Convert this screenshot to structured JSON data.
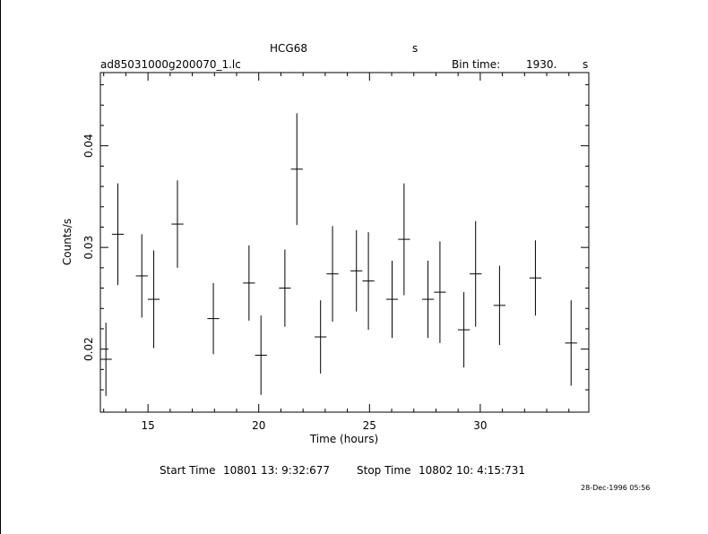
{
  "header": {
    "object": "HCG68",
    "object_unit": "s",
    "file": "ad85031000g200070_1.lc",
    "bin_label": "Bin time:",
    "bin_value": "1930.",
    "bin_unit": "s"
  },
  "footer": {
    "start_label": "Start Time",
    "start_value": "10801 13: 9:32:677",
    "stop_label": "Stop Time",
    "stop_value": "10802 10: 4:15:731",
    "timestamp": "28-Dec-1996 05:56"
  },
  "chart_data": {
    "type": "scatter",
    "title": "HCG68",
    "xlabel": "Time (hours)",
    "ylabel": "Counts/s",
    "xlim": [
      12.85,
      34.9
    ],
    "ylim": [
      0.0138,
      0.0472
    ],
    "x_ticks": [
      15,
      20,
      25,
      30
    ],
    "y_ticks": [
      0.02,
      0.03,
      0.04
    ],
    "x_tick_labels": [
      "15",
      "20",
      "25",
      "30"
    ],
    "y_tick_labels": [
      "0.02",
      "0.03",
      "0.04"
    ],
    "grid": false,
    "series": [
      {
        "points": [
          {
            "x": 13.1,
            "y": 0.019,
            "err": 0.0036
          },
          {
            "x": 13.64,
            "y": 0.0313,
            "err": 0.005
          },
          {
            "x": 14.72,
            "y": 0.0272,
            "err": 0.0041
          },
          {
            "x": 15.26,
            "y": 0.0249,
            "err": 0.0048
          },
          {
            "x": 16.33,
            "y": 0.0323,
            "err": 0.0043
          },
          {
            "x": 17.95,
            "y": 0.023,
            "err": 0.0035
          },
          {
            "x": 19.56,
            "y": 0.0265,
            "err": 0.0037
          },
          {
            "x": 20.1,
            "y": 0.0194,
            "err": 0.0039
          },
          {
            "x": 21.18,
            "y": 0.026,
            "err": 0.0038
          },
          {
            "x": 21.72,
            "y": 0.0377,
            "err": 0.0055
          },
          {
            "x": 22.79,
            "y": 0.0212,
            "err": 0.0036
          },
          {
            "x": 23.33,
            "y": 0.0274,
            "err": 0.0047
          },
          {
            "x": 24.41,
            "y": 0.0277,
            "err": 0.004
          },
          {
            "x": 24.95,
            "y": 0.0267,
            "err": 0.0048
          },
          {
            "x": 26.02,
            "y": 0.0249,
            "err": 0.0038
          },
          {
            "x": 26.56,
            "y": 0.0308,
            "err": 0.0055
          },
          {
            "x": 27.64,
            "y": 0.0249,
            "err": 0.0038
          },
          {
            "x": 28.18,
            "y": 0.0256,
            "err": 0.005
          },
          {
            "x": 29.26,
            "y": 0.0219,
            "err": 0.0037
          },
          {
            "x": 29.79,
            "y": 0.0274,
            "err": 0.0052
          },
          {
            "x": 30.87,
            "y": 0.0243,
            "err": 0.0039
          },
          {
            "x": 32.49,
            "y": 0.027,
            "err": 0.0037
          },
          {
            "x": 34.1,
            "y": 0.0206,
            "err": 0.0042
          }
        ]
      }
    ]
  }
}
